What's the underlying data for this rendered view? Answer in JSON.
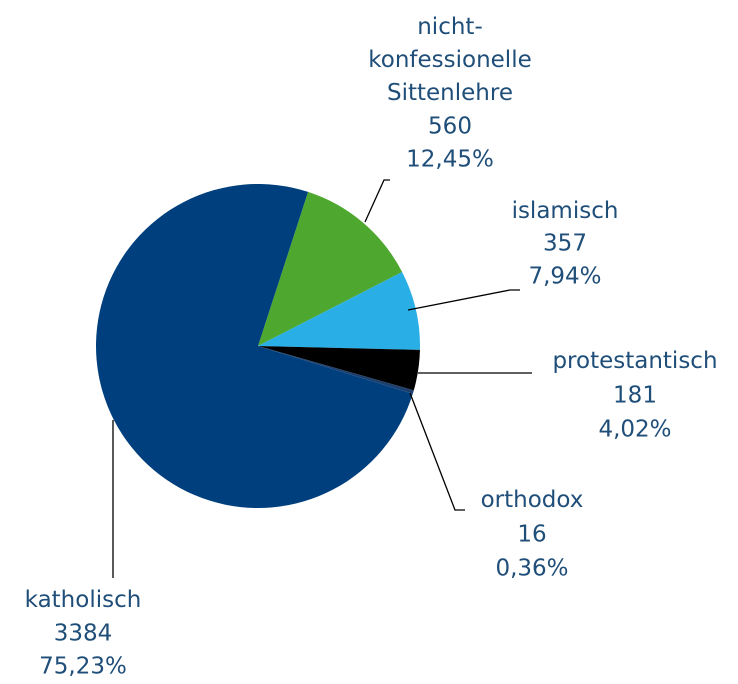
{
  "chart_data": {
    "type": "pie",
    "categories": [
      "nicht-\nkonfessionelle\nSittenlehre",
      "islamisch",
      "protestantisch",
      "orthodox",
      "katholisch"
    ],
    "values": [
      560,
      357,
      181,
      16,
      3384
    ],
    "percent": [
      12.45,
      7.94,
      4.02,
      0.36,
      75.23
    ],
    "percent_labels": [
      "12,45%",
      "7,94%",
      "4,02%",
      "0,36%",
      "75,23%"
    ],
    "colors": [
      "#4ea72e",
      "#29aee6",
      "#000000",
      "#1d3f6e",
      "#003f7d"
    ]
  }
}
